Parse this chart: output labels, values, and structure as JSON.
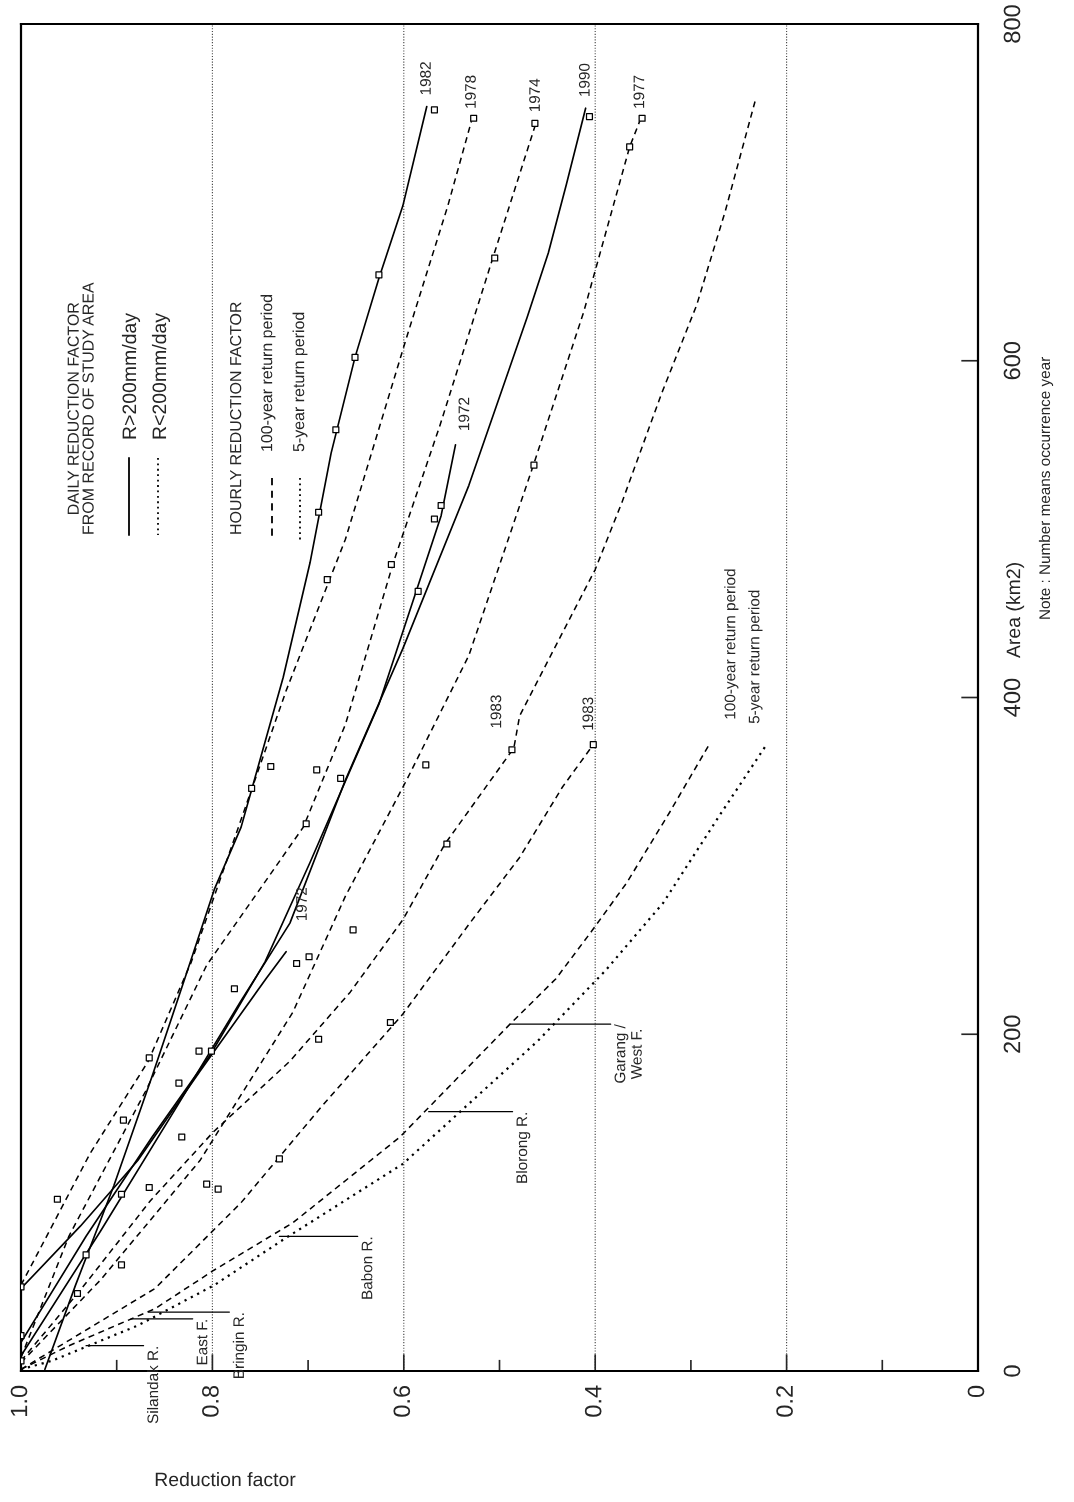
{
  "chart_data": {
    "type": "line",
    "xlabel": "Reduction factor",
    "ylabel": "Area (km2)",
    "xlim": [
      1.0,
      0
    ],
    "ylim": [
      0,
      800
    ],
    "xticks": [
      {
        "value": 1.0,
        "label": "1.0"
      },
      {
        "value": 0.9,
        "label": null
      },
      0.8,
      {
        "value": 0.7,
        "label": null
      },
      0.6,
      {
        "value": 0.5,
        "label": null
      },
      0.4,
      {
        "value": 0.3,
        "label": null
      },
      0.2,
      {
        "value": 0.1,
        "label": null
      },
      0
    ],
    "yticks": [
      0,
      200,
      400,
      600,
      800
    ],
    "grid": "x",
    "series": [
      {
        "line_style": "solid",
        "color": "#000000",
        "x": [
          0.975,
          0.943,
          0.903,
          0.863,
          0.823,
          0.798,
          0.77,
          0.726,
          0.698,
          0.676,
          0.651,
          0.626,
          0.601,
          0.576
        ],
        "values": [
          1,
          51,
          110,
          175,
          243,
          286,
          323,
          412,
          480,
          545,
          602,
          649,
          692,
          751
        ]
      },
      {
        "line_style": "solid",
        "color": "#000000",
        "x": [
          1.0,
          0.917,
          0.834,
          0.771,
          0.719,
          0.661,
          0.601,
          0.532,
          0.471,
          0.449,
          0.43,
          0.41
        ],
        "values": [
          9,
          83,
          160,
          219,
          266,
          351,
          429,
          526,
          626,
          664,
          705,
          750
        ]
      },
      {
        "line_style": "solid",
        "color": "#000000",
        "x": [
          1.0,
          0.932,
          0.863,
          0.802,
          0.745,
          0.698,
          0.626,
          0.561,
          0.546
        ],
        "values": [
          17,
          80,
          139,
          188,
          243,
          302,
          396,
          508,
          550
        ]
      },
      {
        "line_style": "solid",
        "color": "#000000",
        "x": [
          1.0,
          0.938,
          0.878,
          0.813,
          0.744,
          0.723
        ],
        "values": [
          49,
          86,
          125,
          178,
          233,
          249
        ]
      },
      {
        "line_style": "dashed",
        "color": "#000000",
        "x": [
          1.0,
          0.928,
          0.867,
          0.822,
          0.723,
          0.661,
          0.597,
          0.554,
          0.529
        ],
        "values": [
          51,
          129,
          184,
          243,
          404,
          494,
          614,
          692,
          743
        ]
      },
      {
        "line_style": "dashed",
        "color": "#000000",
        "x": [
          1.0,
          0.95,
          0.87,
          0.806,
          0.705,
          0.661,
          0.611,
          0.562,
          0.507,
          0.462
        ],
        "values": [
          8,
          80,
          166,
          241,
          323,
          384,
          480,
          562,
          661,
          741
        ]
      },
      {
        "line_style": "dashed",
        "color": "#000000",
        "x": [
          1.0,
          0.917,
          0.813,
          0.716,
          0.661,
          0.597,
          0.532,
          0.464,
          0.412,
          0.364,
          0.353
        ],
        "values": [
          5,
          54,
          125,
          213,
          282,
          351,
          425,
          539,
          629,
          727,
          743
        ]
      },
      {
        "line_style": "dashed",
        "color": "#000000",
        "x": [
          1.0,
          0.938,
          0.865,
          0.799,
          0.719,
          0.656,
          0.601,
          0.557,
          0.485,
          0.479,
          0.441,
          0.4,
          0.372,
          0.331,
          0.294,
          0.264,
          0.233
        ],
        "values": [
          6,
          48,
          101,
          142,
          184,
          225,
          268,
          313,
          370,
          389,
          431,
          476,
          516,
          580,
          633,
          689,
          754
        ]
      },
      {
        "line_style": "dashed",
        "color": "#000000",
        "x": [
          1.0,
          0.86,
          0.77,
          0.686,
          0.601,
          0.531,
          0.479,
          0.434,
          0.402
        ],
        "values": [
          1,
          49,
          100,
          157,
          212,
          266,
          305,
          347,
          372
        ]
      },
      {
        "line_style": "dashed",
        "color": "#000000",
        "x": [
          1.0,
          0.95,
          0.86,
          0.798,
          0.716,
          0.604,
          0.489,
          0.441,
          0.404,
          0.367,
          0.322,
          0.281
        ],
        "values": [
          1,
          15,
          37,
          60,
          88,
          139,
          206,
          233,
          261,
          290,
          332,
          372
        ]
      },
      {
        "line_style": "dotted",
        "color": "#000000",
        "x": [
          1.0,
          0.968,
          0.878,
          0.798,
          0.726,
          0.601,
          0.46,
          0.389,
          0.329,
          0.27,
          0.221
        ],
        "values": [
          1,
          6,
          27,
          51,
          78,
          123,
          196,
          238,
          278,
          330,
          372
        ]
      },
      {
        "type": "scatter",
        "marker": "square",
        "color": "#000000",
        "x": [
          0.568,
          0.626,
          0.651,
          0.671,
          0.527,
          0.505,
          0.463,
          0.464,
          0.406,
          0.351,
          0.364,
          0.689,
          0.68,
          0.613,
          0.585,
          0.568,
          0.561,
          0.739,
          0.759,
          0.691,
          0.666,
          0.702,
          0.577,
          0.487,
          0.555,
          0.653,
          0.699,
          0.712,
          0.402,
          0.777,
          0.614,
          0.689,
          0.814,
          0.801,
          0.866,
          0.835,
          0.893,
          0.832,
          0.73,
          0.962,
          0.895,
          0.866,
          0.806,
          0.794,
          0.932,
          0.895,
          0.941,
          1.0,
          1.0,
          1.0
        ],
        "values": [
          749,
          651,
          602,
          559,
          744,
          661,
          741,
          538,
          745,
          744,
          727,
          510,
          470,
          479,
          463,
          506,
          514,
          359,
          346,
          357,
          352,
          325,
          360,
          369,
          313,
          262,
          246,
          242,
          372,
          227,
          207,
          197,
          190,
          190,
          186,
          171,
          149,
          139,
          126,
          102,
          105,
          109,
          111,
          108,
          69,
          63,
          46,
          50,
          21,
          6
        ]
      }
    ],
    "annotations": [
      "DAILY REDUCTION FACTOR\nFROM RECORD OF STUDY AREA",
      "R>200mm/day",
      "R<200mm/day",
      "HOURLY REDUCTION FACTOR",
      "100-year return period",
      "5-year return period",
      "Note : Number means occurrence year",
      {
        "text": "1982",
        "x": 0.576,
        "y": 751
      },
      {
        "text": "1978",
        "x": 0.529,
        "y": 743
      },
      {
        "text": "1974",
        "x": 0.462,
        "y": 741
      },
      {
        "text": "1990",
        "x": 0.41,
        "y": 750
      },
      {
        "text": "1977",
        "x": 0.353,
        "y": 743
      },
      {
        "text": "1972",
        "x": 0.546,
        "y": 550
      },
      {
        "text": "1972",
        "x": 0.723,
        "y": 249
      },
      {
        "text": "1983",
        "x": 0.485,
        "y": 370
      },
      {
        "text": "1983",
        "x": 0.402,
        "y": 372
      },
      {
        "text": "100-year return period",
        "x": 0.281,
        "y": 372
      },
      {
        "text": "5-year return period",
        "x": 0.221,
        "y": 372
      },
      {
        "text": "Silandak R.",
        "x": 0.932,
        "y": 15
      },
      {
        "text": "East F.",
        "x": 0.885,
        "y": 31
      },
      {
        "text": "Bringin R.",
        "x": 0.867,
        "y": 35
      },
      {
        "text": "Babon R.",
        "x": 0.73,
        "y": 80
      },
      {
        "text": "Blorong R.",
        "x": 0.574,
        "y": 154
      },
      {
        "text": "Garang /\nWest F.",
        "x": 0.489,
        "y": 206
      }
    ]
  }
}
